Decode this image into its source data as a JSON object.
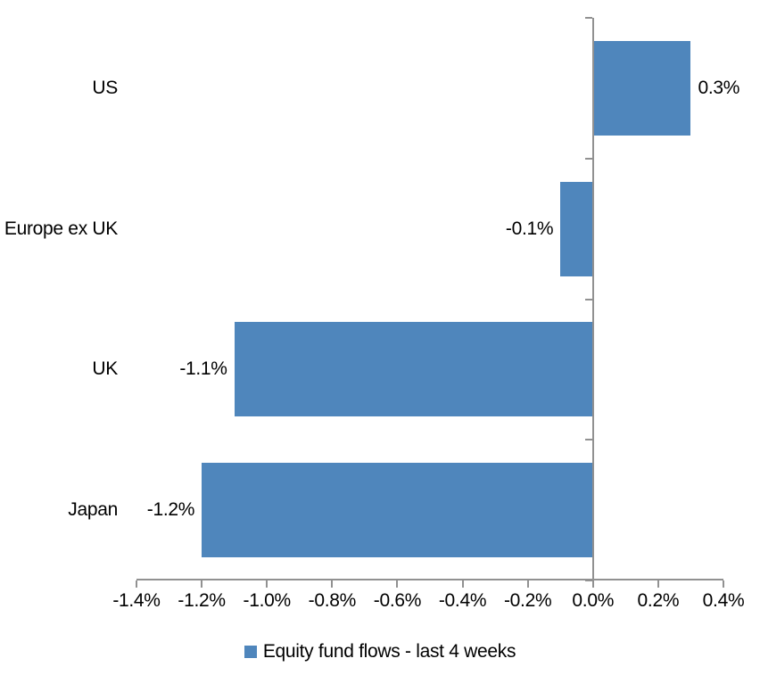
{
  "chart_data": {
    "type": "bar",
    "orientation": "horizontal",
    "title": "",
    "xlabel": "",
    "ylabel": "",
    "grid": false,
    "categories": [
      "US",
      "Europe ex UK",
      "UK",
      "Japan"
    ],
    "values": [
      0.3,
      -0.1,
      -1.1,
      -1.2
    ],
    "value_labels": [
      "0.3%",
      "-0.1%",
      "-1.1%",
      "-1.2%"
    ],
    "x_axis": {
      "min": -1.4,
      "max": 0.4,
      "tick_step": 0.2,
      "tick_labels": [
        "-1.4%",
        "-1.2%",
        "-1.0%",
        "-0.8%",
        "-0.6%",
        "-0.4%",
        "-0.2%",
        "0.0%",
        "0.2%",
        "0.4%"
      ]
    },
    "legend": {
      "position": "bottom",
      "entries": [
        {
          "label": "Equity fund flows - last 4 weeks",
          "color": "#4F86BC"
        }
      ]
    },
    "colors": {
      "bar": "#4F86BC",
      "axis": "#919191",
      "text": "#000000",
      "background": "#FFFFFF"
    }
  }
}
